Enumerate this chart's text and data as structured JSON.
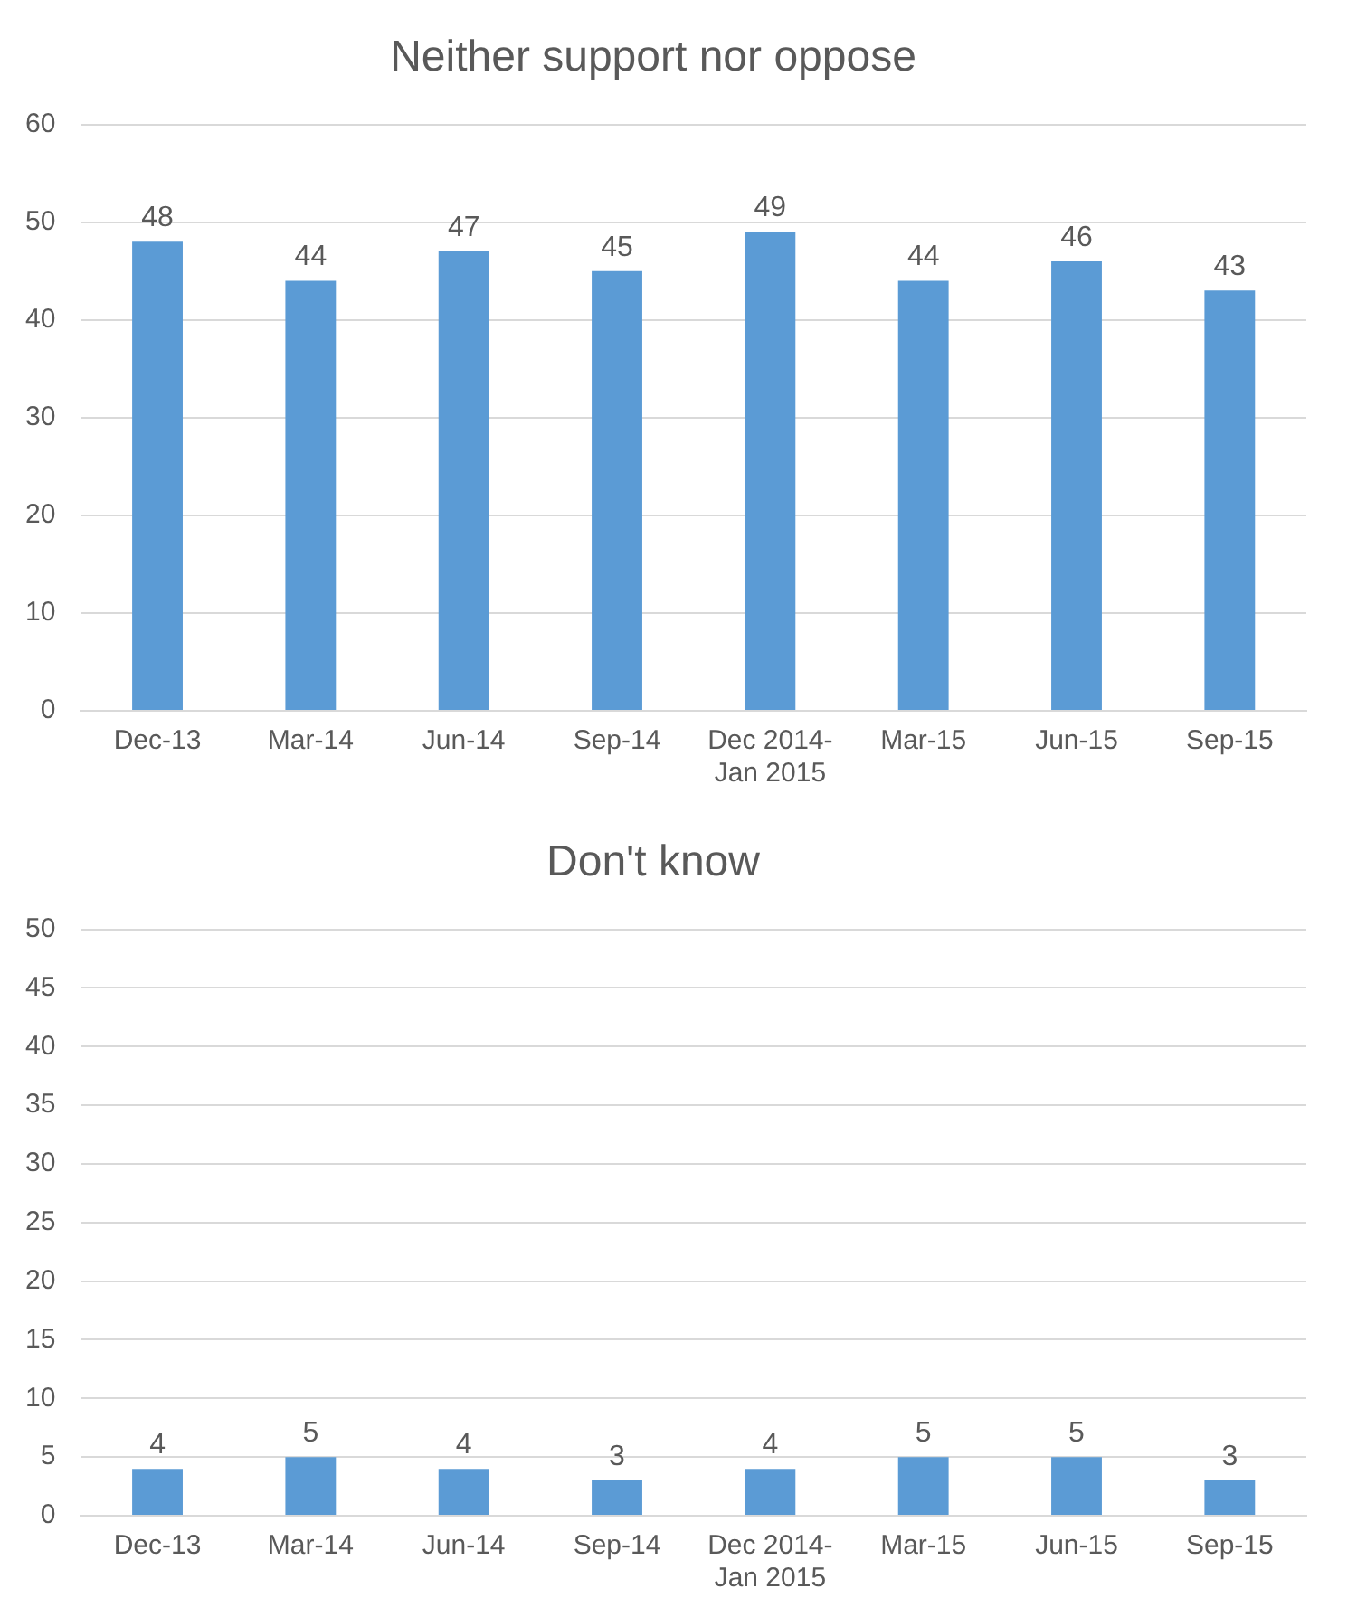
{
  "chart_data": [
    {
      "type": "bar",
      "title": "Neither support nor oppose",
      "categories": [
        "Dec-13",
        "Mar-14",
        "Jun-14",
        "Sep-14",
        "Dec 2014-Jan 2015",
        "Mar-15",
        "Jun-15",
        "Sep-15"
      ],
      "values": [
        48,
        44,
        47,
        45,
        49,
        44,
        46,
        43
      ],
      "color": "#5b9bd5",
      "ylim": [
        0,
        60
      ],
      "yticks": [
        0,
        10,
        20,
        30,
        40,
        50,
        60
      ],
      "grid": "y",
      "data_labels": true
    },
    {
      "type": "bar",
      "title": "Don't know",
      "categories": [
        "Dec-13",
        "Mar-14",
        "Jun-14",
        "Sep-14",
        "Dec 2014-Jan 2015",
        "Mar-15",
        "Jun-15",
        "Sep-15"
      ],
      "values": [
        4,
        5,
        4,
        3,
        4,
        5,
        5,
        3
      ],
      "color": "#5b9bd5",
      "ylim": [
        0,
        50
      ],
      "yticks": [
        0,
        5,
        10,
        15,
        20,
        25,
        30,
        35,
        40,
        45,
        50
      ],
      "grid": "y",
      "data_labels": true
    }
  ]
}
